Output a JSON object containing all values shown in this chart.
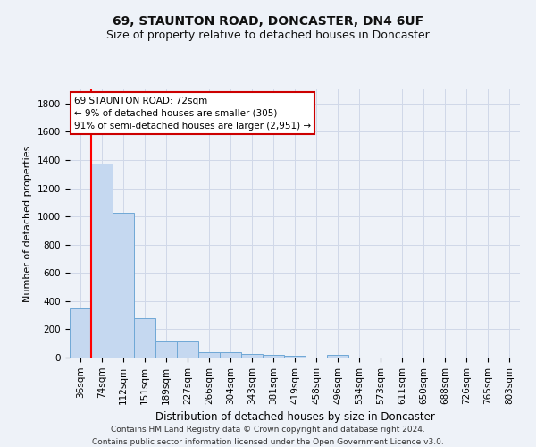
{
  "title": "69, STAUNTON ROAD, DONCASTER, DN4 6UF",
  "subtitle": "Size of property relative to detached houses in Doncaster",
  "xlabel": "Distribution of detached houses by size in Doncaster",
  "ylabel": "Number of detached properties",
  "footer_line1": "Contains HM Land Registry data © Crown copyright and database right 2024.",
  "footer_line2": "Contains public sector information licensed under the Open Government Licence v3.0.",
  "categories": [
    "36sqm",
    "74sqm",
    "112sqm",
    "151sqm",
    "189sqm",
    "227sqm",
    "266sqm",
    "304sqm",
    "343sqm",
    "381sqm",
    "419sqm",
    "458sqm",
    "496sqm",
    "534sqm",
    "573sqm",
    "611sqm",
    "650sqm",
    "688sqm",
    "726sqm",
    "765sqm",
    "803sqm"
  ],
  "values": [
    350,
    1375,
    1025,
    280,
    120,
    120,
    40,
    35,
    25,
    20,
    15,
    0,
    20,
    0,
    0,
    0,
    0,
    0,
    0,
    0,
    0
  ],
  "bar_color": "#c5d8f0",
  "bar_edge_color": "#6fa8d6",
  "ylim": [
    0,
    1900
  ],
  "yticks": [
    0,
    200,
    400,
    600,
    800,
    1000,
    1200,
    1400,
    1600,
    1800
  ],
  "property_bar_index": 1,
  "annotation_line1": "69 STAUNTON ROAD: 72sqm",
  "annotation_line2": "← 9% of detached houses are smaller (305)",
  "annotation_line3": "91% of semi-detached houses are larger (2,951) →",
  "annotation_box_facecolor": "#ffffff",
  "annotation_box_edgecolor": "#cc0000",
  "grid_color": "#d0d8e8",
  "background_color": "#eef2f8",
  "title_fontsize": 10,
  "subtitle_fontsize": 9,
  "axis_fontsize": 7.5,
  "ylabel_fontsize": 8,
  "xlabel_fontsize": 8.5,
  "footer_fontsize": 6.5,
  "ann_fontsize": 7.5
}
